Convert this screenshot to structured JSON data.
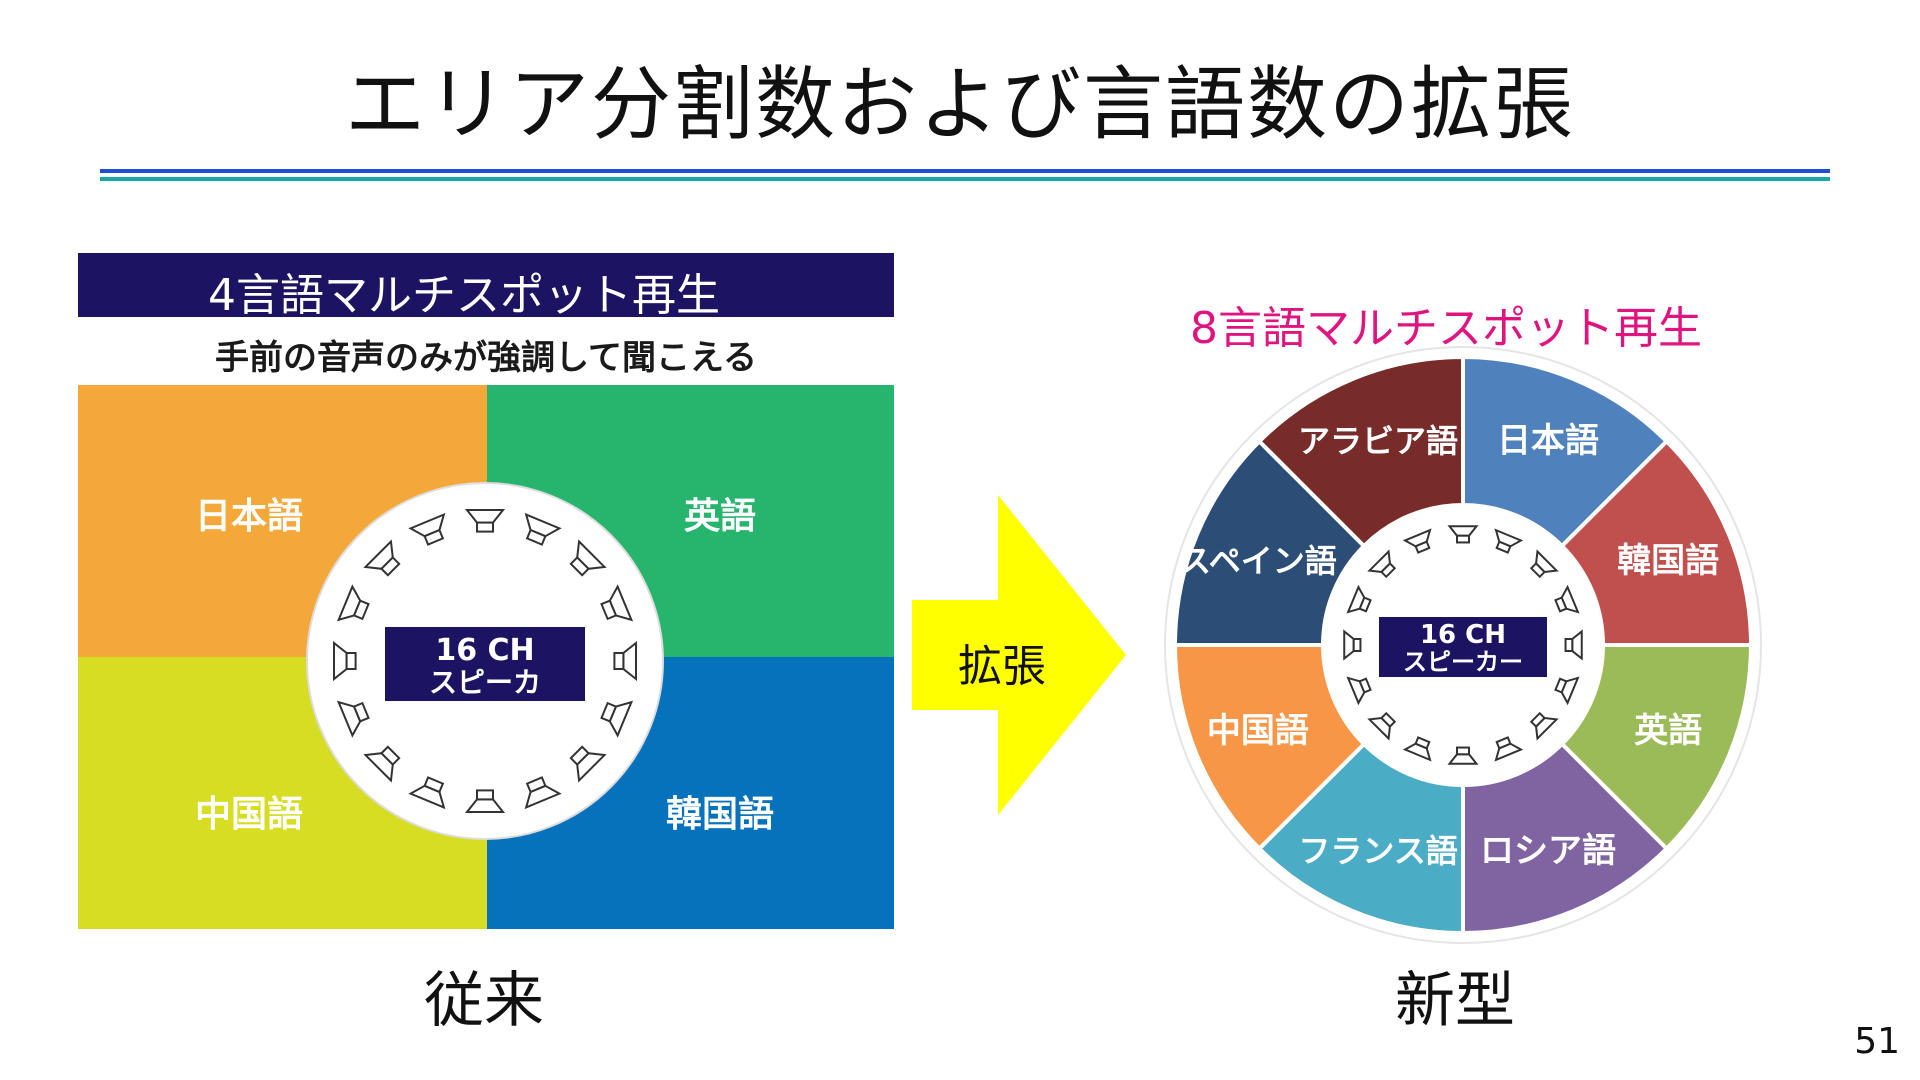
{
  "title": "エリア分割数および言語数の拡張",
  "left": {
    "banner": "4言語マルチスポット再生",
    "subtitle": "手前の音声のみが強調して聞こえる",
    "quadrants": [
      "日本語",
      "英語",
      "中国語",
      "韓国語"
    ],
    "center_line1": "16 CH",
    "center_line2": "スピーカ",
    "caption": "従来",
    "colors": {
      "japanese": "#f5a83a",
      "english": "#27b56e",
      "chinese": "#d6dd23",
      "korean": "#0672bb"
    }
  },
  "arrow_label": "拡張",
  "right": {
    "title": "8言語マルチスポット再生",
    "segments": [
      "日本語",
      "韓国語",
      "英語",
      "ロシア語",
      "フランス語",
      "中国語",
      "スペイン語",
      "アラビア語"
    ],
    "center_line1": "16 CH",
    "center_line2": "スピーカー",
    "caption": "新型",
    "colors": [
      "#4f81bd",
      "#c0504d",
      "#9bbb59",
      "#8064a2",
      "#4bacc6",
      "#f79646",
      "#2c4d75",
      "#772c2a"
    ]
  },
  "page_number": "51"
}
